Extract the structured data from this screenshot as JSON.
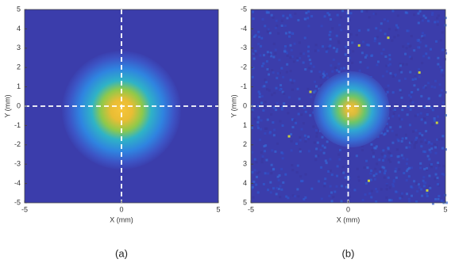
{
  "chart_data": [
    {
      "type": "heatmap",
      "caption": "(a)",
      "x_label": "X (mm)",
      "y_label": "Y (mm)",
      "xlim": [
        -5,
        5
      ],
      "xticks": [
        -5,
        0,
        5
      ],
      "ylim": [
        -5,
        5
      ],
      "yticks": [
        5,
        4,
        3,
        2,
        1,
        0,
        -1,
        -2,
        -3,
        -4,
        -5
      ],
      "crosshair": {
        "x": 0,
        "y": 0
      },
      "noise": false
    },
    {
      "type": "heatmap",
      "caption": "(b)",
      "x_label": "X (mm)",
      "y_label": "Y (mm)",
      "xlim": [
        -5,
        5
      ],
      "xticks": [
        -5,
        0,
        5
      ],
      "ylim": [
        5,
        -5
      ],
      "yticks": [
        -5,
        -4,
        -3,
        -2,
        -1,
        0,
        1,
        2,
        3,
        4,
        5
      ],
      "crosshair": {
        "x": 0,
        "y": 0
      },
      "noise": true
    }
  ]
}
